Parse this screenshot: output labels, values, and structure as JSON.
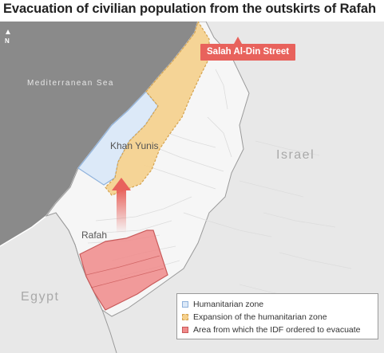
{
  "title": "Evacuation of civilian population from the outskirts of Rafah",
  "north_label": "N",
  "places": {
    "sea": "Mediterranean Sea",
    "israel": "Israel",
    "egypt": "Egypt",
    "khan_yunis": "Khan Yunis",
    "rafah": "Rafah"
  },
  "street_label": "Salah Al-Din Street",
  "legend": [
    {
      "label": "Humanitarian zone",
      "fill": "#dce9f8",
      "stroke": "#8fb2dc"
    },
    {
      "label": "Expansion of the humanitarian zone",
      "fill": "#f5d08c",
      "stroke": "#d4a24e"
    },
    {
      "label": "Area from which the IDF ordered to evacuate",
      "fill": "#f08a8a",
      "stroke": "#c95a5a"
    }
  ],
  "colors": {
    "sea": "#8a8a8a",
    "land_outside": "#e8e8e8",
    "gaza_land": "#f6f6f6",
    "border": "#9a9a9a",
    "humanitarian_fill": "#dce9f8",
    "humanitarian_stroke": "#8fb2dc",
    "expansion_fill": "#f5d08c",
    "expansion_stroke": "#d4a24e",
    "evac_fill": "#f08a8a",
    "evac_stroke": "#c95a5a",
    "arrow": "#e8625c",
    "callout": "#e8625c"
  }
}
